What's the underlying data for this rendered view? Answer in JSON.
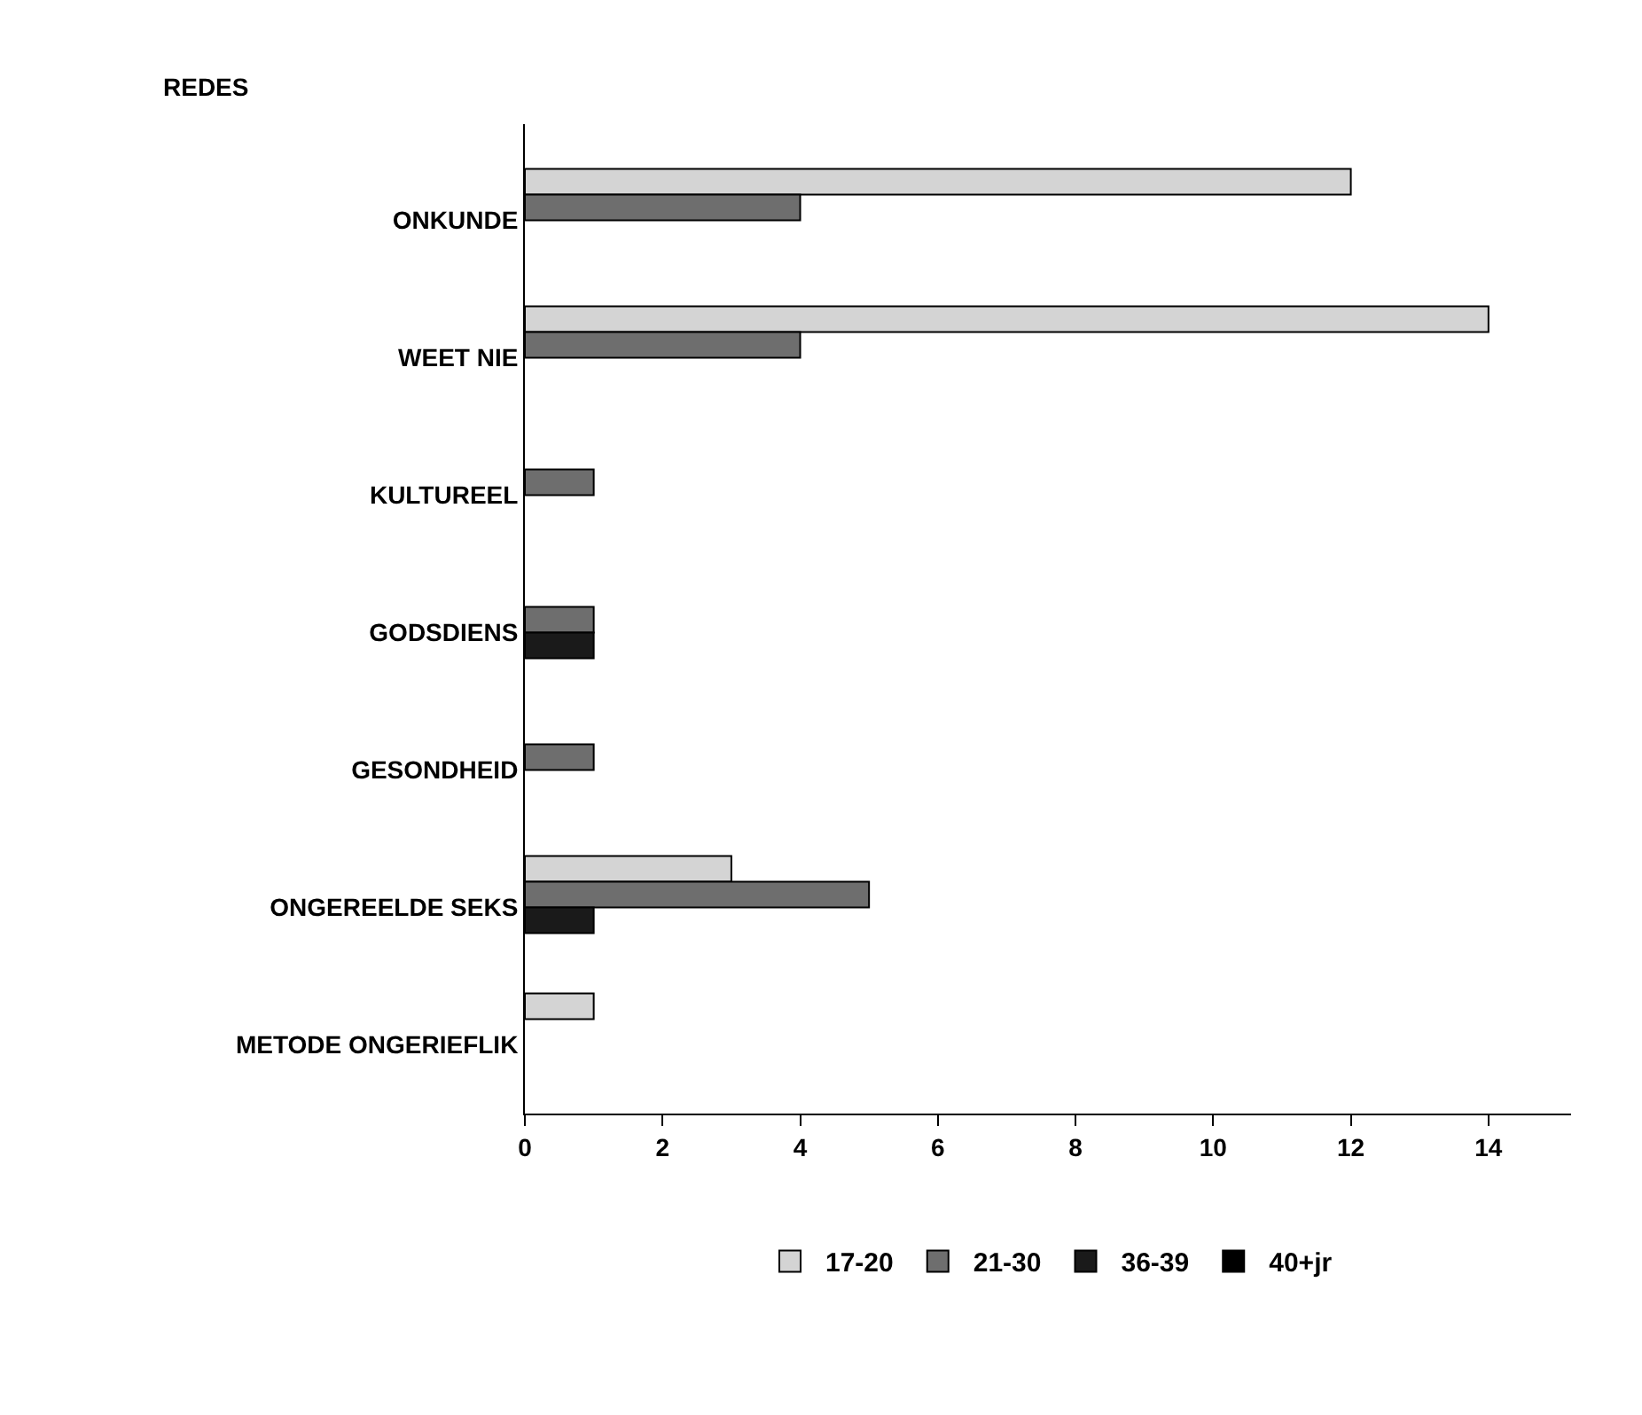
{
  "chart_data": {
    "type": "bar",
    "orientation": "horizontal",
    "ylabel": "REDES",
    "categories": [
      "ONKUNDE",
      "WEET NIE",
      "KULTUREEL",
      "GODSDIENS",
      "GESONDHEID",
      "ONGEREELDE SEKS",
      "METODE ONGERIEFLIK"
    ],
    "series": [
      {
        "name": "17-20",
        "color": "#d4d4d4",
        "values": [
          12,
          14,
          null,
          null,
          null,
          3,
          1
        ]
      },
      {
        "name": "21-30",
        "color": "#6e6e6e",
        "values": [
          4,
          4,
          1,
          1,
          1,
          5,
          null
        ]
      },
      {
        "name": "36-39",
        "color": "#1a1a1a",
        "values": [
          null,
          null,
          null,
          1,
          null,
          1,
          null
        ]
      },
      {
        "name": "40+jr",
        "color": "#000000",
        "values": [
          null,
          null,
          null,
          null,
          null,
          null,
          null
        ]
      }
    ],
    "xlim": [
      0,
      15.2
    ],
    "xticks": [
      0,
      2,
      4,
      6,
      8,
      10,
      12,
      14
    ],
    "grid": false,
    "legend": "bottom"
  }
}
